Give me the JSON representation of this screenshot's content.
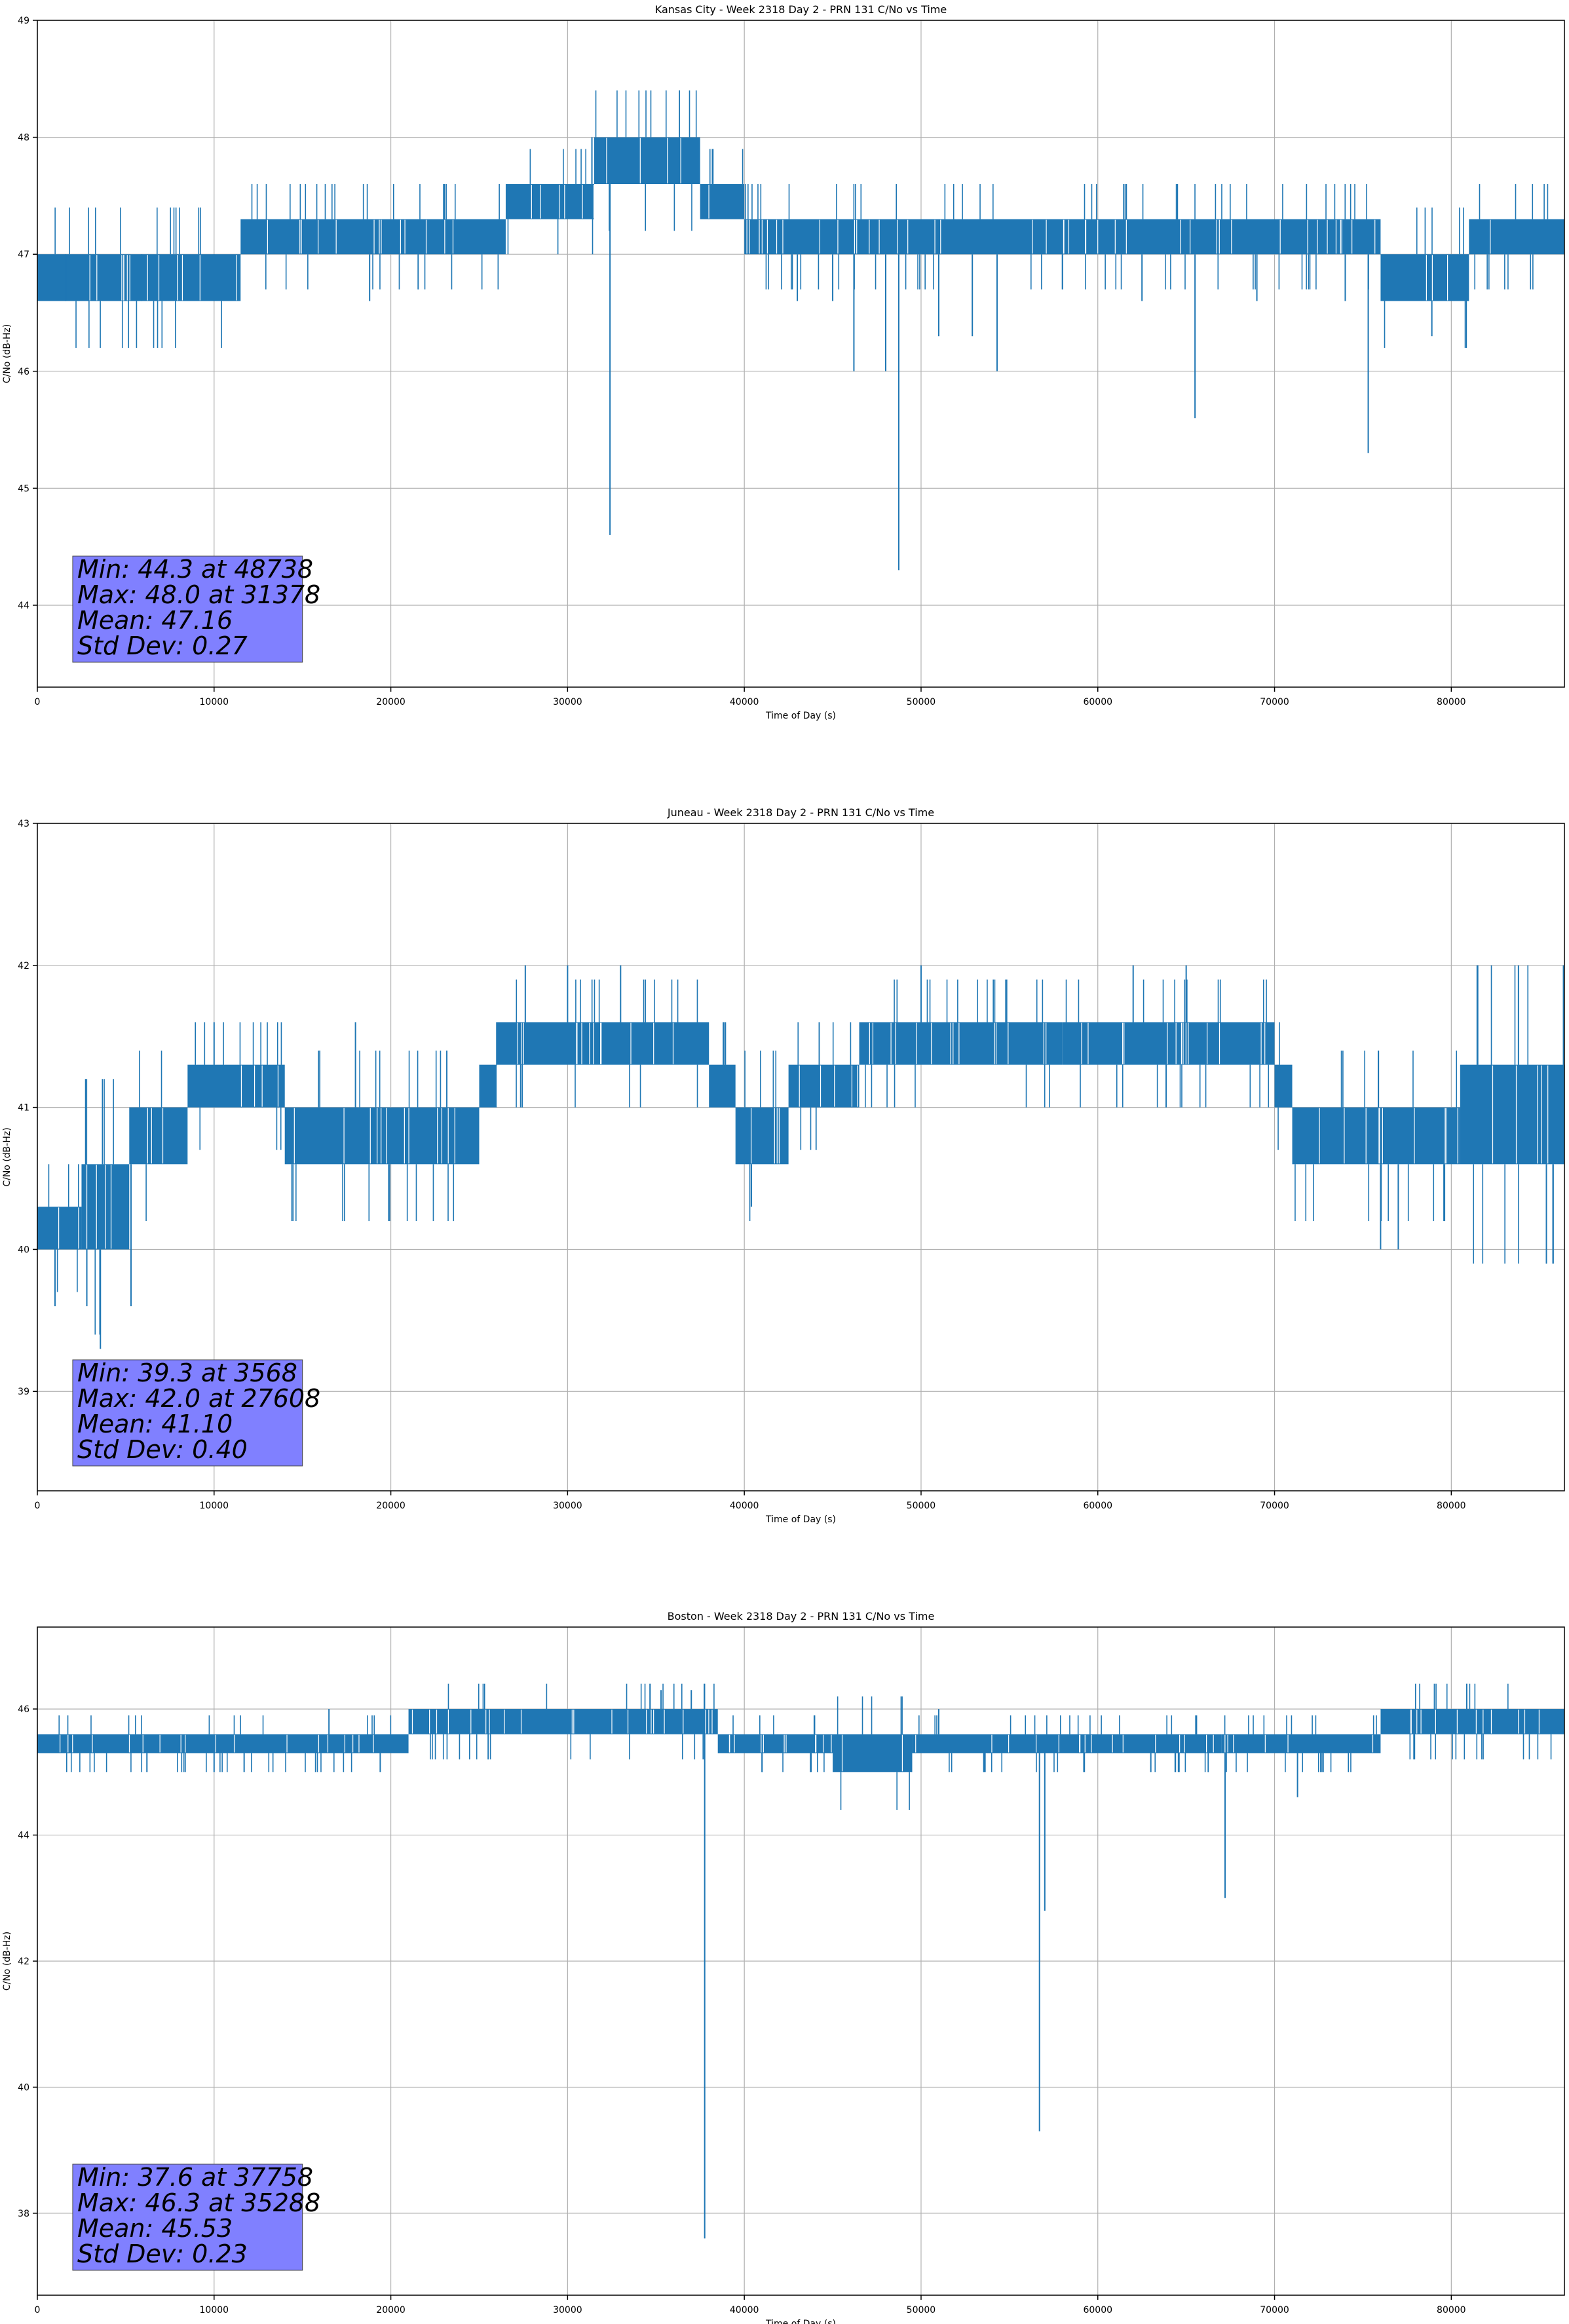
{
  "figure": {
    "line_color": "#1f77b4",
    "stats_box_color": "#8080ff",
    "grid_color": "#b0b0b0"
  },
  "chart_data": [
    {
      "type": "line",
      "title": "Kansas City - Week 2318 Day 2 - PRN 131 C/No vs Time",
      "xlabel": "Time of Day (s)",
      "ylabel": "C/No (dB-Hz)",
      "xlim": [
        0,
        86400
      ],
      "ylim": [
        43.3,
        49.0
      ],
      "xticks": [
        0,
        10000,
        20000,
        30000,
        40000,
        50000,
        60000,
        70000,
        80000
      ],
      "yticks": [
        44,
        45,
        46,
        47,
        48,
        49
      ],
      "grid": true,
      "stats": [
        "Min: 44.3 at 48738",
        "Max: 48.0 at 31378",
        "Mean: 47.16",
        "Std Dev: 0.27"
      ],
      "series": [
        {
          "bands": [
            [
              0,
              11500,
              46.6,
              47.0
            ],
            [
              11500,
              26500,
              47.0,
              47.3
            ],
            [
              26500,
              31500,
              47.3,
              47.6
            ],
            [
              31500,
              37500,
              47.6,
              48.0
            ],
            [
              37500,
              40000,
              47.3,
              47.6
            ],
            [
              40000,
              76000,
              47.0,
              47.3
            ],
            [
              76000,
              81000,
              46.6,
              47.0
            ],
            [
              81000,
              86400,
              47.0,
              47.3
            ]
          ],
          "spikes": [
            [
              32400,
              44.6
            ],
            [
              48738,
              44.3
            ],
            [
              46200,
              46.0
            ],
            [
              48000,
              46.0
            ],
            [
              51000,
              46.3
            ],
            [
              52900,
              46.3
            ],
            [
              54300,
              46.0
            ],
            [
              65500,
              45.6
            ],
            [
              75300,
              45.3
            ],
            [
              78900,
              46.3
            ],
            [
              43000,
              46.6
            ],
            [
              45000,
              46.6
            ],
            [
              62500,
              46.6
            ],
            [
              69000,
              46.6
            ],
            [
              74000,
              46.6
            ],
            [
              1600,
              46.6
            ],
            [
              5900,
              46.6
            ],
            [
              10000,
              46.6
            ],
            [
              18800,
              46.6
            ],
            [
              31378,
              48.0
            ]
          ]
        }
      ]
    },
    {
      "type": "line",
      "title": "Juneau - Week 2318 Day 2 - PRN 131 C/No vs Time",
      "xlabel": "Time of Day (s)",
      "ylabel": "C/No (dB-Hz)",
      "xlim": [
        0,
        86400
      ],
      "ylim": [
        38.3,
        43.0
      ],
      "xticks": [
        0,
        10000,
        20000,
        30000,
        40000,
        50000,
        60000,
        70000,
        80000
      ],
      "yticks": [
        39,
        40,
        41,
        42,
        43
      ],
      "grid": true,
      "stats": [
        "Min: 39.3 at 3568",
        "Max: 42.0 at 27608",
        "Mean: 41.10",
        "Std Dev: 0.40"
      ],
      "series": [
        {
          "bands": [
            [
              0,
              2500,
              40.0,
              40.3
            ],
            [
              2500,
              5200,
              40.0,
              40.6
            ],
            [
              5200,
              8500,
              40.6,
              41.0
            ],
            [
              8500,
              14000,
              41.0,
              41.3
            ],
            [
              14000,
              25000,
              40.6,
              41.0
            ],
            [
              25000,
              26000,
              41.0,
              41.3
            ],
            [
              26000,
              38000,
              41.3,
              41.6
            ],
            [
              38000,
              39500,
              41.0,
              41.3
            ],
            [
              39500,
              42500,
              40.6,
              41.0
            ],
            [
              42500,
              46500,
              41.0,
              41.3
            ],
            [
              46500,
              58000,
              41.3,
              41.6
            ],
            [
              58000,
              70000,
              41.3,
              41.6
            ],
            [
              70000,
              71000,
              41.0,
              41.3
            ],
            [
              71000,
              80500,
              40.6,
              41.0
            ],
            [
              80500,
              86400,
              40.6,
              41.3
            ]
          ],
          "spikes": [
            [
              3568,
              39.3
            ],
            [
              1000,
              39.6
            ],
            [
              2800,
              39.6
            ],
            [
              5300,
              39.6
            ],
            [
              40400,
              40.3
            ],
            [
              76000,
              40.0
            ],
            [
              77000,
              40.0
            ],
            [
              27608,
              42.0
            ],
            [
              30000,
              42.0
            ],
            [
              33000,
              42.0
            ],
            [
              50000,
              42.0
            ],
            [
              62000,
              42.0
            ],
            [
              65000,
              42.0
            ],
            [
              83800,
              42.0
            ],
            [
              10000,
              41.6
            ],
            [
              18000,
              41.6
            ]
          ]
        }
      ]
    },
    {
      "type": "line",
      "title": "Boston - Week 2318 Day 2 - PRN 131 C/No vs Time",
      "xlabel": "Time of Day (s)",
      "ylabel": "C/No (dB-Hz)",
      "xlim": [
        0,
        86400
      ],
      "ylim": [
        36.7,
        47.3
      ],
      "xticks": [
        0,
        10000,
        20000,
        30000,
        40000,
        50000,
        60000,
        70000,
        80000
      ],
      "yticks": [
        38,
        40,
        42,
        44,
        46
      ],
      "grid": true,
      "stats": [
        "Min: 37.6 at 37758",
        "Max: 46.3 at 35288",
        "Mean: 45.53",
        "Std Dev: 0.23"
      ],
      "series": [
        {
          "bands": [
            [
              0,
              21000,
              45.3,
              45.6
            ],
            [
              21000,
              38500,
              45.6,
              46.0
            ],
            [
              38500,
              45000,
              45.3,
              45.6
            ],
            [
              45000,
              49500,
              45.0,
              45.6
            ],
            [
              49500,
              67000,
              45.3,
              45.6
            ],
            [
              67000,
              76000,
              45.3,
              45.6
            ],
            [
              76000,
              86400,
              45.6,
              46.0
            ]
          ],
          "spikes": [
            [
              37758,
              37.6
            ],
            [
              56700,
              39.3
            ],
            [
              67200,
              43.0
            ],
            [
              71300,
              44.6
            ],
            [
              35288,
              46.3
            ],
            [
              37000,
              46.3
            ],
            [
              6200,
              45.0
            ],
            [
              10000,
              45.0
            ],
            [
              11700,
              45.0
            ],
            [
              19400,
              45.0
            ],
            [
              41000,
              45.0
            ],
            [
              57000,
              42.8
            ],
            [
              63000,
              45.0
            ],
            [
              16500,
              46.0
            ],
            [
              51000,
              46.0
            ],
            [
              84000,
              46.0
            ]
          ]
        }
      ]
    }
  ]
}
